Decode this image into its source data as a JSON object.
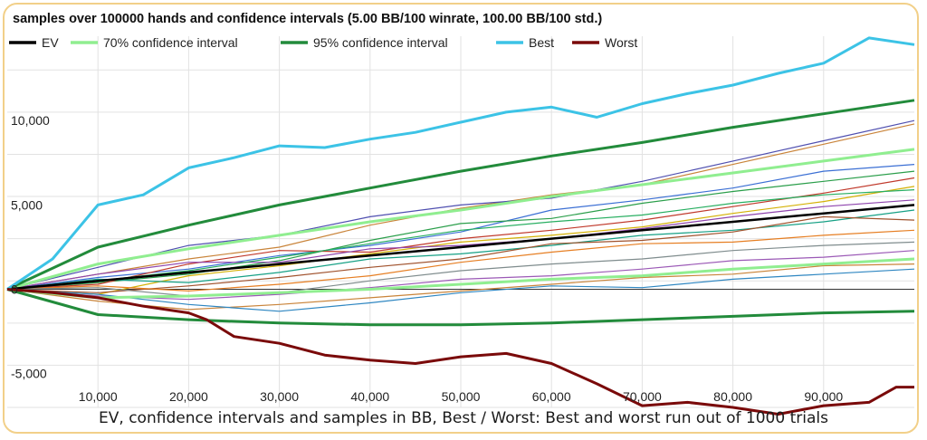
{
  "chart_data": {
    "type": "line",
    "title": "samples over 100000 hands and confidence intervals (5.00 BB/100 winrate, 100.00 BB/100 std.)",
    "xlabel": "",
    "ylabel": "",
    "xlim": [
      0,
      100000
    ],
    "ylim": [
      -7000,
      15000
    ],
    "x_ticks": [
      10000,
      20000,
      30000,
      40000,
      50000,
      60000,
      70000,
      80000,
      90000
    ],
    "x_tick_labels": [
      "10,000",
      "20,000",
      "30,000",
      "40,000",
      "50,000",
      "60,000",
      "70,000",
      "80,000",
      "90,000"
    ],
    "y_ticks": [
      -5000,
      0,
      5000,
      10000
    ],
    "y_tick_labels": [
      "-5,000",
      "0",
      "5,000",
      "10,000"
    ],
    "grid": true,
    "legend_position": "top-left",
    "legend": [
      {
        "name": "EV",
        "color": "#000000"
      },
      {
        "name": "70% confidence interval",
        "color": "#90ee90"
      },
      {
        "name": "95% confidence interval",
        "color": "#228b3b"
      },
      {
        "name": "Best",
        "color": "#3cc3e6"
      },
      {
        "name": "Worst",
        "color": "#7a0a0a"
      }
    ],
    "series": [
      {
        "name": "EV",
        "color": "#000000",
        "x": [
          0,
          10000,
          20000,
          30000,
          40000,
          50000,
          60000,
          70000,
          80000,
          90000,
          100000
        ],
        "values": [
          0,
          500,
          1000,
          1500,
          2000,
          2500,
          3000,
          3500,
          4000,
          4500,
          5000
        ]
      },
      {
        "name": "70% confidence interval",
        "color": "#90ee90",
        "bound": "upper",
        "x": [
          0,
          10000,
          20000,
          30000,
          40000,
          50000,
          60000,
          70000,
          80000,
          90000,
          100000
        ],
        "values": [
          0,
          1500,
          2400,
          3200,
          4000,
          4700,
          5500,
          6200,
          6900,
          7600,
          8300
        ]
      },
      {
        "name": "70% confidence interval",
        "color": "#90ee90",
        "bound": "lower",
        "x": [
          0,
          10000,
          20000,
          30000,
          40000,
          50000,
          60000,
          70000,
          80000,
          90000,
          100000
        ],
        "values": [
          0,
          -500,
          -400,
          -200,
          0,
          300,
          600,
          800,
          1200,
          1500,
          1800
        ]
      },
      {
        "name": "95% confidence interval",
        "color": "#228b3b",
        "bound": "upper",
        "x": [
          0,
          10000,
          20000,
          30000,
          40000,
          50000,
          60000,
          70000,
          80000,
          90000,
          100000
        ],
        "values": [
          0,
          2500,
          3800,
          5000,
          6000,
          7000,
          7900,
          8700,
          9600,
          10400,
          11200
        ]
      },
      {
        "name": "95% confidence interval",
        "color": "#228b3b",
        "bound": "lower",
        "x": [
          0,
          10000,
          20000,
          30000,
          40000,
          50000,
          60000,
          70000,
          80000,
          90000,
          100000
        ],
        "values": [
          0,
          -1500,
          -1800,
          -2000,
          -2100,
          -2100,
          -2000,
          -1800,
          -1600,
          -1400,
          -1300
        ]
      },
      {
        "name": "Best",
        "color": "#3cc3e6",
        "x": [
          0,
          5000,
          10000,
          15000,
          20000,
          25000,
          30000,
          35000,
          40000,
          45000,
          50000,
          55000,
          60000,
          65000,
          70000,
          75000,
          80000,
          85000,
          90000,
          95000,
          100000
        ],
        "values": [
          0,
          1800,
          5000,
          5600,
          7200,
          7800,
          8500,
          8400,
          8900,
          9300,
          9900,
          10500,
          10800,
          10200,
          11000,
          11600,
          12100,
          12800,
          13400,
          14900,
          14500
        ]
      },
      {
        "name": "Worst",
        "color": "#7a0a0a",
        "x": [
          0,
          5000,
          10000,
          15000,
          20000,
          22000,
          25000,
          30000,
          35000,
          40000,
          45000,
          50000,
          55000,
          60000,
          65000,
          70000,
          75000,
          80000,
          85000,
          90000,
          95000,
          98000,
          100000
        ],
        "values": [
          0,
          -200,
          -500,
          -1000,
          -1400,
          -1800,
          -2800,
          -3200,
          -3900,
          -4200,
          -4400,
          -4000,
          -3800,
          -4400,
          -5600,
          -6900,
          -6700,
          -7000,
          -7400,
          -6900,
          -6700,
          -5800,
          -5800
        ]
      },
      {
        "x": [
          0,
          10000,
          20000,
          30000,
          40000,
          50000,
          60000,
          70000,
          80000,
          90000,
          100000
        ],
        "values": [
          0,
          900,
          1800,
          2500,
          3800,
          4800,
          5600,
          6200,
          7400,
          8600,
          9800
        ],
        "color": "#c9843a"
      },
      {
        "x": [
          0,
          10000,
          20000,
          30000,
          40000,
          50000,
          60000,
          70000,
          80000,
          90000,
          100000
        ],
        "values": [
          0,
          1300,
          2600,
          3200,
          4300,
          5000,
          5400,
          6400,
          7600,
          8800,
          10000
        ],
        "color": "#4f4fb0"
      },
      {
        "x": [
          0,
          10000,
          20000,
          30000,
          40000,
          50000,
          60000,
          70000,
          80000,
          90000,
          100000
        ],
        "values": [
          0,
          700,
          1200,
          2000,
          2600,
          3400,
          4700,
          5300,
          6000,
          7000,
          7400
        ],
        "color": "#3b6fd4"
      },
      {
        "x": [
          0,
          10000,
          20000,
          30000,
          40000,
          50000,
          60000,
          70000,
          80000,
          90000,
          100000
        ],
        "values": [
          0,
          400,
          900,
          1700,
          2900,
          3900,
          4200,
          5100,
          5800,
          6400,
          7000
        ],
        "color": "#2a9e4a"
      },
      {
        "x": [
          0,
          10000,
          20000,
          30000,
          40000,
          50000,
          60000,
          70000,
          80000,
          90000,
          100000
        ],
        "values": [
          0,
          300,
          1500,
          2300,
          2200,
          3000,
          3500,
          4100,
          4900,
          5700,
          6600
        ],
        "color": "#c0392b"
      },
      {
        "x": [
          0,
          10000,
          20000,
          30000,
          40000,
          50000,
          60000,
          70000,
          80000,
          90000,
          100000
        ],
        "values": [
          0,
          -300,
          800,
          1400,
          2100,
          2800,
          3200,
          3700,
          4500,
          5200,
          6100
        ],
        "color": "#d4b106"
      },
      {
        "x": [
          0,
          10000,
          20000,
          30000,
          40000,
          50000,
          60000,
          70000,
          80000,
          90000,
          100000
        ],
        "values": [
          0,
          900,
          1600,
          1600,
          2400,
          2600,
          3000,
          3600,
          4300,
          4900,
          5300
        ],
        "color": "#8e44ad"
      },
      {
        "x": [
          0,
          10000,
          20000,
          30000,
          40000,
          50000,
          60000,
          70000,
          80000,
          90000,
          100000
        ],
        "values": [
          0,
          600,
          400,
          1000,
          1800,
          2100,
          2600,
          3200,
          3500,
          4000,
          4700
        ],
        "color": "#16a085"
      },
      {
        "x": [
          0,
          10000,
          20000,
          30000,
          40000,
          50000,
          60000,
          70000,
          80000,
          90000,
          100000
        ],
        "values": [
          0,
          -200,
          200,
          700,
          1300,
          1800,
          2700,
          2900,
          3400,
          4300,
          4100
        ],
        "color": "#a0522d"
      },
      {
        "x": [
          0,
          10000,
          20000,
          30000,
          40000,
          50000,
          60000,
          70000,
          80000,
          90000,
          100000
        ],
        "values": [
          0,
          200,
          -100,
          300,
          800,
          1600,
          2200,
          2700,
          2800,
          3200,
          3500
        ],
        "color": "#e67e22"
      },
      {
        "x": [
          0,
          10000,
          20000,
          30000,
          40000,
          50000,
          60000,
          70000,
          80000,
          90000,
          100000
        ],
        "values": [
          0,
          100,
          -400,
          -200,
          500,
          1100,
          1500,
          1800,
          2300,
          2600,
          2800
        ],
        "color": "#7f8c8d"
      },
      {
        "x": [
          0,
          10000,
          20000,
          30000,
          40000,
          50000,
          60000,
          70000,
          80000,
          90000,
          100000
        ],
        "values": [
          0,
          -400,
          -600,
          -300,
          100,
          600,
          800,
          1200,
          1700,
          1900,
          2300
        ],
        "color": "#9b59b6"
      },
      {
        "x": [
          0,
          10000,
          20000,
          30000,
          40000,
          50000,
          60000,
          70000,
          80000,
          90000,
          100000
        ],
        "values": [
          0,
          -700,
          -1200,
          -900,
          -500,
          -100,
          300,
          700,
          900,
          1400,
          1500
        ],
        "color": "#c9843a"
      },
      {
        "x": [
          0,
          10000,
          20000,
          30000,
          40000,
          50000,
          60000,
          70000,
          80000,
          90000,
          100000
        ],
        "values": [
          0,
          -300,
          -900,
          -1300,
          -800,
          -200,
          200,
          100,
          600,
          900,
          1200
        ],
        "color": "#2e86c1"
      },
      {
        "x": [
          0,
          10000,
          20000,
          30000,
          40000,
          50000,
          60000,
          70000,
          80000,
          90000,
          100000
        ],
        "values": [
          0,
          500,
          1100,
          1900,
          2700,
          3500,
          4000,
          4400,
          5100,
          5600,
          5900
        ],
        "color": "#27ae60"
      }
    ]
  },
  "caption": "EV, confidence intervals and samples in BB, Best / Worst: Best and worst run out of 1000 trials"
}
